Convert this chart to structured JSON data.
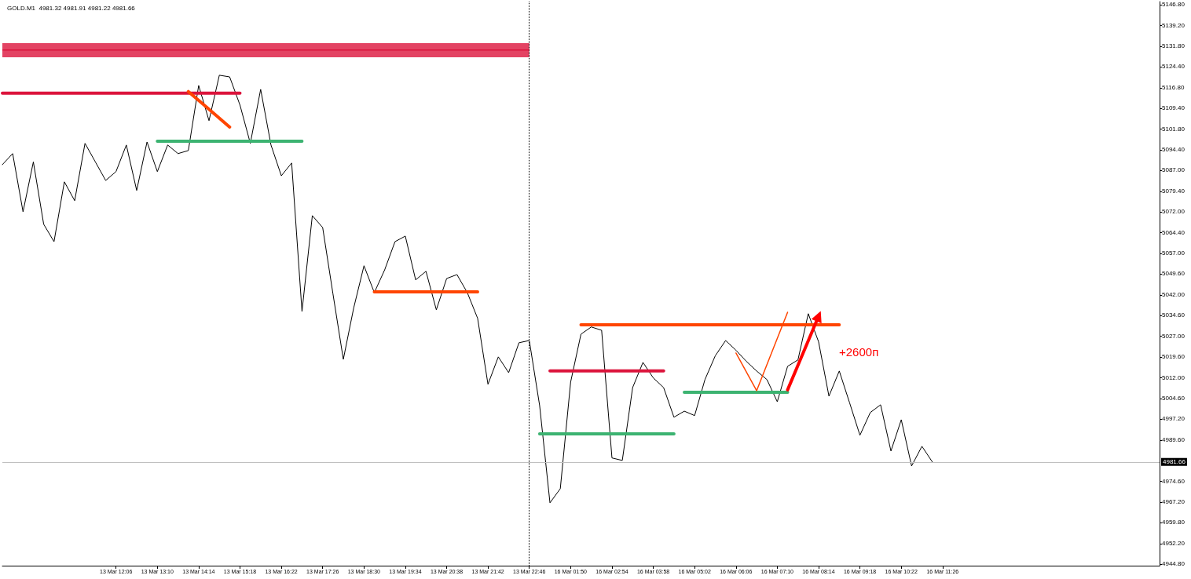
{
  "chart_data": {
    "type": "line",
    "title": "GOLD.M1  4981.32 4981.91 4981.22 4981.66",
    "categories": [
      null,
      null,
      null,
      null,
      null,
      null,
      null,
      null,
      null,
      null,
      null,
      "13 Mar 12:06",
      null,
      null,
      null,
      "13 Mar 13:10",
      null,
      null,
      null,
      "13 Mar 14:14",
      null,
      null,
      null,
      "13 Mar 15:18",
      null,
      null,
      null,
      "13 Mar 16:22",
      null,
      null,
      null,
      "13 Mar 17:26",
      null,
      null,
      null,
      "13 Mar 18:30",
      null,
      null,
      null,
      "13 Mar 19:34",
      null,
      null,
      null,
      "13 Mar 20:38",
      null,
      null,
      null,
      "13 Mar 21:42",
      null,
      null,
      null,
      "13 Mar 22:46",
      null,
      null,
      null,
      "16 Mar 01:50",
      null,
      null,
      null,
      "16 Mar 02:54",
      null,
      null,
      null,
      "16 Mar 03:58",
      null,
      null,
      null,
      "16 Mar 05:02",
      null,
      null,
      null,
      "16 Mar 06:06",
      null,
      null,
      null,
      "16 Mar 07:10",
      null,
      null,
      null,
      "16 Mar 08:14",
      null,
      null,
      null,
      "16 Mar 09:18",
      null,
      null,
      null,
      "16 Mar 10:22",
      null,
      null,
      null,
      "16 Mar 11:26",
      null,
      null,
      null,
      null,
      null,
      null,
      null,
      null,
      null,
      null,
      null,
      null,
      null,
      null,
      null,
      null,
      null,
      null,
      null,
      null,
      null
    ],
    "ylim": [
      4944.2,
      5147.9
    ],
    "yticks": [
      {
        "value": 4944.8,
        "label": "4944.80"
      },
      {
        "value": 4952.2,
        "label": "4952.20"
      },
      {
        "value": 4959.8,
        "label": "4959.80"
      },
      {
        "value": 4967.2,
        "label": "4967.20"
      },
      {
        "value": 4974.6,
        "label": "4974.60"
      },
      {
        "value": 4989.6,
        "label": "4989.60"
      },
      {
        "value": 4997.2,
        "label": "4997.20"
      },
      {
        "value": 5004.6,
        "label": "5004.60"
      },
      {
        "value": 5012,
        "label": "5012.00"
      },
      {
        "value": 5019.6,
        "label": "5019.60"
      },
      {
        "value": 5027,
        "label": "5027.00"
      },
      {
        "value": 5034.6,
        "label": "5034.60"
      },
      {
        "value": 5042,
        "label": "5042.00"
      },
      {
        "value": 5049.6,
        "label": "5049.60"
      },
      {
        "value": 5057,
        "label": "5057.00"
      },
      {
        "value": 5064.4,
        "label": "5064.40"
      },
      {
        "value": 5072,
        "label": "5072.00"
      },
      {
        "value": 5079.4,
        "label": "5079.40"
      },
      {
        "value": 5087,
        "label": "5087.00"
      },
      {
        "value": 5094.4,
        "label": "5094.40"
      },
      {
        "value": 5101.8,
        "label": "5101.80"
      },
      {
        "value": 5109.4,
        "label": "5109.40"
      },
      {
        "value": 5116.8,
        "label": "5116.80"
      },
      {
        "value": 5124.4,
        "label": "5124.40"
      },
      {
        "value": 5131.8,
        "label": "5131.80"
      },
      {
        "value": 5139.2,
        "label": "5139.20"
      },
      {
        "value": 5146.8,
        "label": "5146.80"
      }
    ],
    "grid": false,
    "marker": "none",
    "line_style": "solid",
    "ref_lines": [
      {
        "axis": "y",
        "value": 4981.66,
        "label": "4981.66",
        "color": "#c0c0c0"
      },
      {
        "axis": "x",
        "value": "13 Mar 22:46",
        "label": null,
        "color": "#000000",
        "line_style": "dotted"
      }
    ],
    "annotations": [
      "+2600п"
    ],
    "series": [
      {
        "color": "#000000",
        "values": [
          5089.0,
          5093.0,
          5072.0,
          5090.0,
          5067.5,
          5061.2,
          5082.8,
          5076.0,
          5096.7,
          5090.0,
          5083.3,
          5086.5,
          5096.1,
          5079.7,
          5097.2,
          5086.5,
          5096.1,
          5093.0,
          5094.1,
          5117.6,
          5104.9,
          5121.3,
          5120.7,
          5110.5,
          5096.7,
          5116.2,
          5096.1,
          5085.0,
          5089.6,
          5036.0,
          5070.6,
          5066.3,
          5042.3,
          5018.7,
          5037.2,
          5052.5,
          5042.8,
          5051.0,
          5061.2,
          5063.2,
          5047.4,
          5050.5,
          5036.6,
          5047.9,
          5049.3,
          5042.8,
          5033.5,
          5009.7,
          5019.6,
          5013.9,
          5024.7,
          5025.5,
          5002.0,
          4966.9,
          4972.0,
          5010.5,
          5027.8,
          5030.4,
          5029.2,
          4983.1,
          4982.2,
          5008.5,
          5017.6,
          5012.0,
          5008.5,
          4997.8,
          5000.0,
          4998.4,
          5011.4,
          5020.0,
          5025.5,
          5022.0,
          5018.0,
          5014.5,
          5011.4,
          5003.4,
          5016.2,
          5018.5,
          5035.2,
          5025.0,
          5005.4,
          5014.5,
          5003.0,
          4991.3,
          4999.5,
          5002.3,
          4985.6,
          4996.9,
          4980.2,
          4987.3,
          4981.7,
          null,
          null,
          null,
          null,
          null,
          null,
          null,
          null,
          null,
          null,
          null,
          null,
          null,
          null,
          null,
          null,
          null,
          null,
          null,
          null,
          null,
          null
        ]
      },
      {
        "color": "#dc143c",
        "values": [
          5130.4,
          null,
          null,
          null,
          null,
          null,
          null,
          null,
          null,
          null,
          null,
          null,
          null,
          null,
          null,
          null,
          null,
          null,
          null,
          null,
          null,
          null,
          null,
          null,
          null,
          null,
          null,
          null,
          null,
          null,
          null,
          null,
          null,
          null,
          null,
          null,
          null,
          null,
          null,
          null,
          null,
          null,
          null,
          null,
          null,
          null,
          null,
          null,
          null,
          null,
          null,
          5130.4,
          null,
          null,
          null,
          null,
          null,
          null,
          null,
          null,
          null,
          null,
          null,
          null,
          null,
          null,
          null,
          null,
          null,
          null,
          null,
          null,
          null,
          null,
          null,
          null,
          null,
          null,
          null,
          null,
          null,
          null,
          null,
          null,
          null,
          null,
          null,
          null,
          null,
          null,
          null,
          null,
          null,
          null,
          null,
          null,
          null,
          null,
          null,
          null,
          null,
          null,
          null,
          null,
          null,
          null,
          null,
          null,
          null,
          null,
          null,
          null,
          null
        ],
        "lower": [
          5127.8,
          null,
          null,
          null,
          null,
          null,
          null,
          null,
          null,
          null,
          null,
          null,
          null,
          null,
          null,
          null,
          null,
          null,
          null,
          null,
          null,
          null,
          null,
          null,
          null,
          null,
          null,
          null,
          null,
          null,
          null,
          null,
          null,
          null,
          null,
          null,
          null,
          null,
          null,
          null,
          null,
          null,
          null,
          null,
          null,
          null,
          null,
          null,
          null,
          null,
          null,
          5127.8,
          null,
          null,
          null,
          null,
          null,
          null,
          null,
          null,
          null,
          null,
          null,
          null,
          null,
          null,
          null,
          null,
          null,
          null,
          null,
          null,
          null,
          null,
          null,
          null,
          null,
          null,
          null,
          null,
          null,
          null,
          null,
          null,
          null,
          null,
          null,
          null,
          null,
          null,
          null,
          null,
          null,
          null,
          null,
          null,
          null,
          null,
          null,
          null,
          null,
          null,
          null,
          null,
          null,
          null,
          null,
          null,
          null,
          null,
          null,
          null,
          null
        ],
        "upper": [
          5132.9,
          null,
          null,
          null,
          null,
          null,
          null,
          null,
          null,
          null,
          null,
          null,
          null,
          null,
          null,
          null,
          null,
          null,
          null,
          null,
          null,
          null,
          null,
          null,
          null,
          null,
          null,
          null,
          null,
          null,
          null,
          null,
          null,
          null,
          null,
          null,
          null,
          null,
          null,
          null,
          null,
          null,
          null,
          null,
          null,
          null,
          null,
          null,
          null,
          null,
          null,
          5132.9,
          null,
          null,
          null,
          null,
          null,
          null,
          null,
          null,
          null,
          null,
          null,
          null,
          null,
          null,
          null,
          null,
          null,
          null,
          null,
          null,
          null,
          null,
          null,
          null,
          null,
          null,
          null,
          null,
          null,
          null,
          null,
          null,
          null,
          null,
          null,
          null,
          null,
          null,
          null,
          null,
          null,
          null,
          null,
          null,
          null,
          null,
          null,
          null,
          null,
          null,
          null,
          null,
          null,
          null,
          null,
          null,
          null,
          null,
          null,
          null,
          null
        ]
      },
      {
        "color": "#dc143c",
        "values": [
          5114.8,
          null,
          null,
          null,
          null,
          null,
          null,
          null,
          null,
          null,
          null,
          null,
          null,
          null,
          null,
          null,
          null,
          null,
          null,
          null,
          null,
          null,
          null,
          5114.8,
          null,
          null,
          null,
          null,
          null,
          null,
          null,
          null,
          null,
          null,
          null,
          null,
          null,
          null,
          null,
          null,
          null,
          null,
          null,
          null,
          null,
          null,
          null,
          null,
          null,
          null,
          null,
          null,
          null,
          null,
          null,
          null,
          null,
          null,
          null,
          null,
          null,
          null,
          null,
          null,
          null,
          null,
          null,
          null,
          null,
          null,
          null,
          null,
          null,
          null,
          null,
          null,
          null,
          null,
          null,
          null,
          null,
          null,
          null,
          null,
          null,
          null,
          null,
          null,
          null,
          null,
          null,
          null,
          null,
          null,
          null,
          null,
          null,
          null,
          null,
          null,
          null,
          null,
          null,
          null,
          null,
          null,
          null,
          null,
          null,
          null,
          null,
          null,
          null
        ]
      },
      {
        "color": "#3cb371",
        "values": [
          null,
          null,
          null,
          null,
          null,
          null,
          null,
          null,
          null,
          null,
          null,
          null,
          null,
          null,
          null,
          5097.5,
          null,
          null,
          null,
          null,
          null,
          null,
          null,
          null,
          null,
          null,
          null,
          null,
          null,
          5097.5,
          null,
          null,
          null,
          null,
          null,
          null,
          null,
          null,
          null,
          null,
          null,
          null,
          null,
          null,
          null,
          null,
          null,
          null,
          null,
          null,
          null,
          null,
          null,
          null,
          null,
          null,
          null,
          null,
          null,
          null,
          null,
          null,
          null,
          null,
          null,
          null,
          null,
          null,
          null,
          null,
          null,
          null,
          null,
          null,
          null,
          null,
          null,
          null,
          null,
          null,
          null,
          null,
          null,
          null,
          null,
          null,
          null,
          null,
          null,
          null,
          null,
          null,
          null,
          null,
          null,
          null,
          null,
          null,
          null,
          null,
          null,
          null,
          null,
          null,
          null,
          null,
          null,
          null,
          null,
          null,
          null,
          null,
          null
        ]
      },
      {
        "color": "#ff4500",
        "values": [
          null,
          null,
          null,
          null,
          null,
          null,
          null,
          null,
          null,
          null,
          null,
          null,
          null,
          null,
          null,
          null,
          null,
          null,
          5115.4,
          null,
          null,
          null,
          5102.6,
          null,
          null,
          null,
          null,
          null,
          null,
          null,
          null,
          null,
          null,
          null,
          null,
          null,
          null,
          null,
          null,
          null,
          null,
          null,
          null,
          null,
          null,
          null,
          null,
          null,
          null,
          null,
          null,
          null,
          null,
          null,
          null,
          null,
          null,
          null,
          null,
          null,
          null,
          null,
          null,
          null,
          null,
          null,
          null,
          null,
          null,
          null,
          null,
          null,
          null,
          null,
          null,
          null,
          null,
          null,
          null,
          null,
          null,
          null,
          null,
          null,
          null,
          null,
          null,
          null,
          null,
          null,
          null,
          null,
          null,
          null,
          null,
          null,
          null,
          null,
          null,
          null,
          null,
          null,
          null,
          null,
          null,
          null,
          null,
          null,
          null,
          null,
          null,
          null,
          null
        ]
      },
      {
        "color": "#ff4500",
        "values": [
          null,
          null,
          null,
          null,
          null,
          null,
          null,
          null,
          null,
          null,
          null,
          null,
          null,
          null,
          null,
          null,
          null,
          null,
          null,
          null,
          null,
          null,
          null,
          null,
          null,
          null,
          null,
          null,
          null,
          null,
          null,
          null,
          null,
          null,
          null,
          null,
          5043.1,
          null,
          null,
          null,
          null,
          null,
          null,
          null,
          null,
          null,
          5043.1,
          null,
          null,
          null,
          null,
          null,
          null,
          null,
          null,
          null,
          null,
          null,
          null,
          null,
          null,
          null,
          null,
          null,
          null,
          null,
          null,
          null,
          null,
          null,
          null,
          null,
          null,
          null,
          null,
          null,
          null,
          null,
          null,
          null,
          null,
          null,
          null,
          null,
          null,
          null,
          null,
          null,
          null,
          null,
          null,
          null,
          null,
          null,
          null,
          null,
          null,
          null,
          null,
          null,
          null,
          null,
          null,
          null,
          null,
          null,
          null,
          null,
          null,
          null,
          null,
          null,
          null
        ]
      },
      {
        "color": "#ff4500",
        "values": [
          null,
          null,
          null,
          null,
          null,
          null,
          null,
          null,
          null,
          null,
          null,
          null,
          null,
          null,
          null,
          null,
          null,
          null,
          null,
          null,
          null,
          null,
          null,
          null,
          null,
          null,
          null,
          null,
          null,
          null,
          null,
          null,
          null,
          null,
          null,
          null,
          null,
          null,
          null,
          null,
          null,
          null,
          null,
          null,
          null,
          null,
          null,
          null,
          null,
          null,
          null,
          null,
          null,
          null,
          null,
          null,
          5031.2,
          null,
          null,
          null,
          null,
          null,
          null,
          null,
          null,
          null,
          null,
          null,
          null,
          null,
          null,
          null,
          null,
          null,
          null,
          null,
          null,
          null,
          null,
          null,
          null,
          5031.2,
          null,
          null,
          null,
          null,
          null,
          null,
          null,
          null,
          null,
          null,
          null,
          null,
          null,
          null,
          null,
          null,
          null,
          null,
          null,
          null,
          null,
          null,
          null,
          null,
          null,
          null,
          null,
          null,
          null,
          null,
          null
        ]
      },
      {
        "color": "#dc143c",
        "values": [
          null,
          null,
          null,
          null,
          null,
          null,
          null,
          null,
          null,
          null,
          null,
          null,
          null,
          null,
          null,
          null,
          null,
          null,
          null,
          null,
          null,
          null,
          null,
          null,
          null,
          null,
          null,
          null,
          null,
          null,
          null,
          null,
          null,
          null,
          null,
          null,
          null,
          null,
          null,
          null,
          null,
          null,
          null,
          null,
          null,
          null,
          null,
          null,
          null,
          null,
          null,
          null,
          null,
          5014.5,
          null,
          null,
          null,
          null,
          null,
          null,
          null,
          null,
          null,
          null,
          5014.5,
          null,
          null,
          null,
          null,
          null,
          null,
          null,
          null,
          null,
          null,
          null,
          null,
          null,
          null,
          null,
          null,
          null,
          null,
          null,
          null,
          null,
          null,
          null,
          null,
          null,
          null,
          null,
          null,
          null,
          null,
          null,
          null,
          null,
          null,
          null,
          null,
          null,
          null,
          null,
          null,
          null,
          null,
          null,
          null,
          null,
          null,
          null,
          null
        ]
      },
      {
        "color": "#3cb371",
        "values": [
          null,
          null,
          null,
          null,
          null,
          null,
          null,
          null,
          null,
          null,
          null,
          null,
          null,
          null,
          null,
          null,
          null,
          null,
          null,
          null,
          null,
          null,
          null,
          null,
          null,
          null,
          null,
          null,
          null,
          null,
          null,
          null,
          null,
          null,
          null,
          null,
          null,
          null,
          null,
          null,
          null,
          null,
          null,
          null,
          null,
          null,
          null,
          null,
          null,
          null,
          null,
          null,
          4991.8,
          null,
          null,
          null,
          null,
          null,
          null,
          null,
          null,
          null,
          null,
          null,
          null,
          4991.8,
          null,
          null,
          null,
          null,
          null,
          null,
          null,
          null,
          null,
          null,
          null,
          null,
          null,
          null,
          null,
          null,
          null,
          null,
          null,
          null,
          null,
          null,
          null,
          null,
          null,
          null,
          null,
          null,
          null,
          null,
          null,
          null,
          null,
          null,
          null,
          null,
          null,
          null,
          null,
          null,
          null,
          null,
          null,
          null,
          null,
          null,
          null
        ]
      },
      {
        "color": "#3cb371",
        "values": [
          null,
          null,
          null,
          null,
          null,
          null,
          null,
          null,
          null,
          null,
          null,
          null,
          null,
          null,
          null,
          null,
          null,
          null,
          null,
          null,
          null,
          null,
          null,
          null,
          null,
          null,
          null,
          null,
          null,
          null,
          null,
          null,
          null,
          null,
          null,
          null,
          null,
          null,
          null,
          null,
          null,
          null,
          null,
          null,
          null,
          null,
          null,
          null,
          null,
          null,
          null,
          null,
          null,
          null,
          null,
          null,
          null,
          null,
          null,
          null,
          null,
          null,
          null,
          null,
          null,
          null,
          5006.8,
          null,
          null,
          null,
          null,
          null,
          null,
          null,
          null,
          null,
          5006.8,
          null,
          null,
          null,
          null,
          null,
          null,
          null,
          null,
          null,
          null,
          null,
          null,
          null,
          null,
          null,
          null,
          null,
          null,
          null,
          null,
          null,
          null,
          null,
          null,
          null,
          null,
          null,
          null,
          null,
          null,
          null,
          null,
          null,
          null,
          null,
          null
        ]
      },
      {
        "color": "#ff4500",
        "values": [
          null,
          null,
          null,
          null,
          null,
          null,
          null,
          null,
          null,
          null,
          null,
          null,
          null,
          null,
          null,
          null,
          null,
          null,
          null,
          null,
          null,
          null,
          null,
          null,
          null,
          null,
          null,
          null,
          null,
          null,
          null,
          null,
          null,
          null,
          null,
          null,
          null,
          null,
          null,
          null,
          null,
          null,
          null,
          null,
          null,
          null,
          null,
          null,
          null,
          null,
          null,
          null,
          null,
          null,
          null,
          null,
          null,
          null,
          null,
          null,
          null,
          null,
          null,
          null,
          null,
          null,
          null,
          null,
          null,
          null,
          null,
          5021.0,
          null,
          5007.4,
          null,
          null,
          5035.7,
          null,
          null,
          null,
          null,
          null,
          null,
          null,
          null,
          null,
          null,
          null,
          null,
          null,
          null,
          null,
          null,
          null,
          null,
          null,
          null,
          null,
          null,
          null,
          null,
          null,
          null,
          null,
          null,
          null,
          null,
          null,
          null,
          null,
          null,
          null,
          null
        ]
      },
      {
        "color": "#ff0000",
        "marker": "triangle",
        "values": [
          null,
          null,
          null,
          null,
          null,
          null,
          null,
          null,
          null,
          null,
          null,
          null,
          null,
          null,
          null,
          null,
          null,
          null,
          null,
          null,
          null,
          null,
          null,
          null,
          null,
          null,
          null,
          null,
          null,
          null,
          null,
          null,
          null,
          null,
          null,
          null,
          null,
          null,
          null,
          null,
          null,
          null,
          null,
          null,
          null,
          null,
          null,
          null,
          null,
          null,
          null,
          null,
          null,
          null,
          null,
          null,
          null,
          null,
          null,
          null,
          null,
          null,
          null,
          null,
          null,
          null,
          null,
          null,
          null,
          null,
          null,
          null,
          null,
          null,
          null,
          null,
          5007.7,
          null,
          null,
          5034.3,
          null,
          null,
          null,
          null,
          null,
          null,
          null,
          null,
          null,
          null,
          null,
          null,
          null,
          null,
          null,
          null,
          null,
          null,
          null,
          null,
          null,
          null,
          null,
          null,
          null,
          null,
          null,
          null,
          null,
          null,
          null,
          null,
          null
        ]
      }
    ]
  }
}
